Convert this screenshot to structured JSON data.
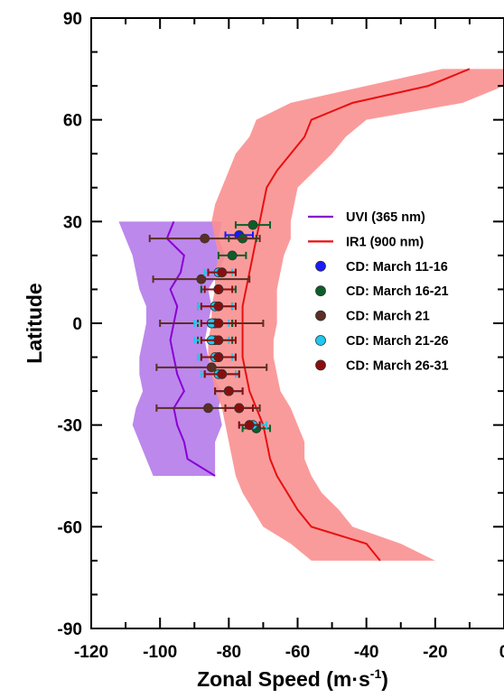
{
  "chart_data": {
    "type": "line",
    "xlabel": "Zonal Speed (m·s",
    "xlabel_sup": "-1",
    "xlabel_close": ")",
    "ylabel": "Latitude",
    "xlim": [
      -120,
      0
    ],
    "ylim": [
      -90,
      90
    ],
    "xticks": [
      -120,
      -100,
      -80,
      -60,
      -40,
      -20,
      0
    ],
    "yticks": [
      -90,
      -60,
      -30,
      0,
      30,
      60,
      90
    ],
    "legend_position": "middle-right",
    "series": [
      {
        "name": "UVI (365 nm)",
        "kind": "line_band",
        "color": "#8a00d4",
        "band_color": "#b57bea",
        "lat": [
          30,
          25,
          20,
          15,
          10,
          5,
          0,
          -5,
          -10,
          -15,
          -20,
          -25,
          -30,
          -35,
          -40,
          -45
        ],
        "speed": [
          -96,
          -98,
          -93,
          -94,
          -97,
          -95,
          -96,
          -97,
          -96,
          -95,
          -93,
          -96,
          -95,
          -93,
          -92,
          -84
        ],
        "lower": [
          -112,
          -110,
          -108,
          -107,
          -106,
          -104,
          -104,
          -105,
          -106,
          -106,
          -105,
          -107,
          -108,
          -106,
          -104,
          -102
        ],
        "upper": [
          -82,
          -83,
          -81,
          -83,
          -86,
          -85,
          -86,
          -87,
          -86,
          -85,
          -82,
          -83,
          -82,
          -84,
          -84,
          -84
        ]
      },
      {
        "name": "IR1 (900 nm)",
        "kind": "line_band",
        "color": "#e81010",
        "band_color": "#f99090",
        "lat": [
          75,
          70,
          65,
          60,
          55,
          50,
          45,
          40,
          35,
          30,
          25,
          20,
          15,
          10,
          5,
          0,
          -5,
          -10,
          -15,
          -20,
          -25,
          -30,
          -35,
          -40,
          -45,
          -50,
          -55,
          -60,
          -65,
          -70
        ],
        "speed": [
          -10,
          -22,
          -44,
          -56,
          -58,
          -62,
          -66,
          -69,
          -70,
          -71,
          -72,
          -73,
          -74,
          -75,
          -76,
          -76,
          -76,
          -76,
          -75,
          -74,
          -72,
          -70,
          -69,
          -68,
          -66,
          -63,
          -60,
          -56,
          -40,
          -36
        ],
        "lower": [
          -18,
          -40,
          -62,
          -72,
          -74,
          -78,
          -80,
          -82,
          -84,
          -85,
          -84,
          -83,
          -84,
          -84,
          -85,
          -85,
          -86,
          -86,
          -85,
          -84,
          -82,
          -81,
          -80,
          -79,
          -78,
          -76,
          -73,
          -70,
          -62,
          -56
        ],
        "upper": [
          0,
          0,
          -12,
          -40,
          -46,
          -50,
          -55,
          -60,
          -61,
          -62,
          -62,
          -64,
          -65,
          -66,
          -66,
          -66,
          -67,
          -67,
          -66,
          -65,
          -62,
          -60,
          -58,
          -58,
          -56,
          -53,
          -48,
          -44,
          -30,
          -20
        ]
      },
      {
        "name": "CD: March 11-16",
        "kind": "points",
        "color": "#1a1aff",
        "points": [
          {
            "lat": 26,
            "speed": -77,
            "err": 4
          },
          {
            "lat": 10,
            "speed": -83,
            "err": 5
          },
          {
            "lat": 0,
            "speed": -84,
            "err": 5
          },
          {
            "lat": -10,
            "speed": -83,
            "err": 5
          },
          {
            "lat": -20,
            "speed": -80,
            "err": 4
          },
          {
            "lat": -30,
            "speed": -74,
            "err": 3
          }
        ]
      },
      {
        "name": "CD: March 16-21",
        "kind": "points",
        "color": "#0b5e2a",
        "points": [
          {
            "lat": 29,
            "speed": -73,
            "err": 5
          },
          {
            "lat": 25,
            "speed": -76,
            "err": 4
          },
          {
            "lat": 20,
            "speed": -79,
            "err": 4
          },
          {
            "lat": 15,
            "speed": -82,
            "err": 4
          },
          {
            "lat": 10,
            "speed": -83,
            "err": 5
          },
          {
            "lat": 5,
            "speed": -84,
            "err": 5
          },
          {
            "lat": 0,
            "speed": -84,
            "err": 5
          },
          {
            "lat": -5,
            "speed": -84,
            "err": 5
          },
          {
            "lat": -10,
            "speed": -83,
            "err": 5
          },
          {
            "lat": -15,
            "speed": -82,
            "err": 5
          },
          {
            "lat": -20,
            "speed": -80,
            "err": 4
          },
          {
            "lat": -25,
            "speed": -77,
            "err": 4
          },
          {
            "lat": -31,
            "speed": -72,
            "err": 4
          }
        ]
      },
      {
        "name": "CD: March 21",
        "kind": "points",
        "color": "#5c2e24",
        "points": [
          {
            "lat": 25,
            "speed": -87,
            "err": 16
          },
          {
            "lat": 13,
            "speed": -88,
            "err": 14
          },
          {
            "lat": 0,
            "speed": -85,
            "err": 15
          },
          {
            "lat": -13,
            "speed": -85,
            "err": 16
          },
          {
            "lat": -25,
            "speed": -86,
            "err": 15
          }
        ]
      },
      {
        "name": "CD: March 21-26",
        "kind": "points",
        "color": "#1ec8f0",
        "points": [
          {
            "lat": 15,
            "speed": -83,
            "err": 4
          },
          {
            "lat": 5,
            "speed": -84,
            "err": 5
          },
          {
            "lat": 0,
            "speed": -85,
            "err": 5
          },
          {
            "lat": -5,
            "speed": -85,
            "err": 5
          },
          {
            "lat": -10,
            "speed": -84,
            "err": 5
          },
          {
            "lat": -15,
            "speed": -83,
            "err": 5
          },
          {
            "lat": -20,
            "speed": -80,
            "err": 4
          },
          {
            "lat": -25,
            "speed": -77,
            "err": 4
          },
          {
            "lat": -30,
            "speed": -73,
            "err": 4
          }
        ]
      },
      {
        "name": "CD: March 26-31",
        "kind": "points",
        "color": "#8b0e0e",
        "points": [
          {
            "lat": 15,
            "speed": -82,
            "err": 4
          },
          {
            "lat": 10,
            "speed": -83,
            "err": 4
          },
          {
            "lat": 5,
            "speed": -83,
            "err": 5
          },
          {
            "lat": 0,
            "speed": -83,
            "err": 5
          },
          {
            "lat": -5,
            "speed": -83,
            "err": 5
          },
          {
            "lat": -10,
            "speed": -83,
            "err": 5
          },
          {
            "lat": -15,
            "speed": -82,
            "err": 5
          },
          {
            "lat": -20,
            "speed": -80,
            "err": 4
          },
          {
            "lat": -25,
            "speed": -77,
            "err": 4
          },
          {
            "lat": -30,
            "speed": -74,
            "err": 3
          }
        ]
      }
    ]
  }
}
